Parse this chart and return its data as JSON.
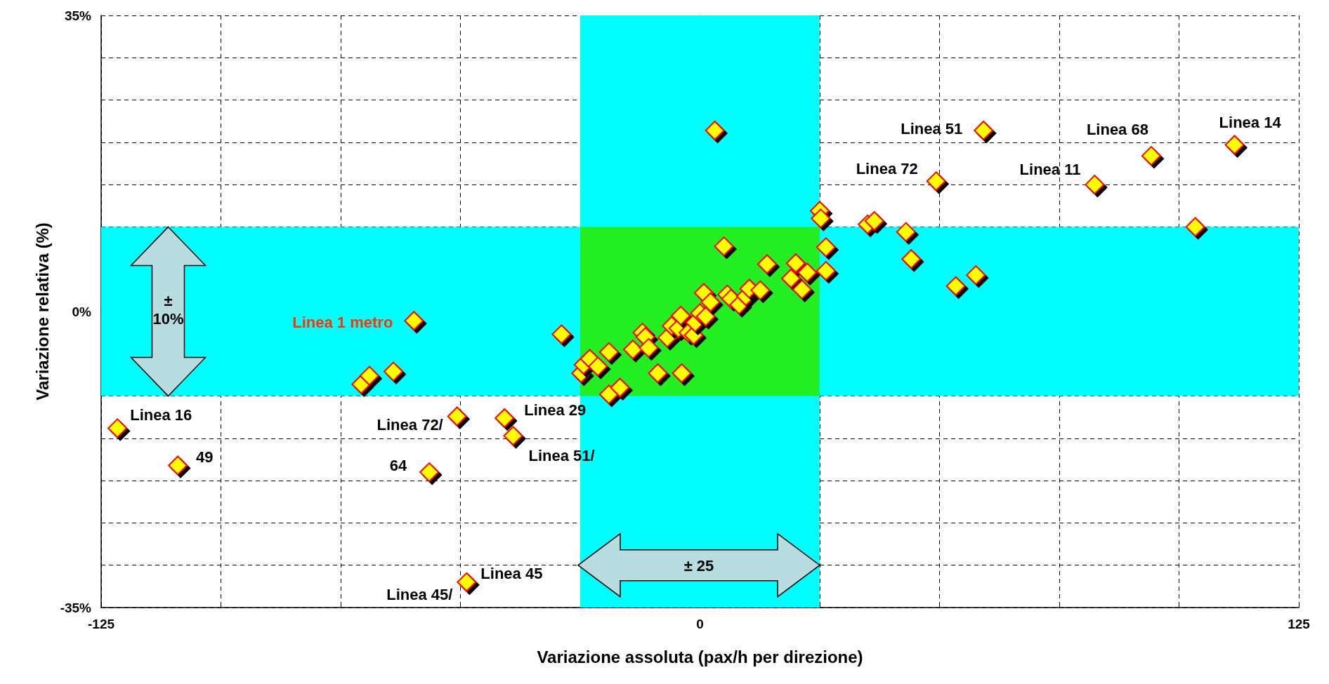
{
  "chart_data": {
    "type": "scatter",
    "xlabel": "Variazione assoluta (pax/h per direzione)",
    "ylabel": "Variazione relativa (%)",
    "xlim": [
      -125,
      125
    ],
    "xticks": [
      {
        "value": -125,
        "label": "-125"
      },
      {
        "value": -100,
        "label": null
      },
      {
        "value": -75,
        "label": null
      },
      {
        "value": -50,
        "label": null
      },
      {
        "value": -25,
        "label": null
      },
      {
        "value": 0,
        "label": "0"
      },
      {
        "value": 25,
        "label": null
      },
      {
        "value": 50,
        "label": null
      },
      {
        "value": 75,
        "label": null
      },
      {
        "value": 100,
        "label": null
      },
      {
        "value": 125,
        "label": "125"
      }
    ],
    "ylim": [
      -35,
      35
    ],
    "yticks": [
      {
        "value": -35,
        "label": "-35%"
      },
      {
        "value": -30,
        "label": null
      },
      {
        "value": -25,
        "label": null
      },
      {
        "value": -20,
        "label": null
      },
      {
        "value": -15,
        "label": null
      },
      {
        "value": -10,
        "label": null
      },
      {
        "value": -5,
        "label": null
      },
      {
        "value": 0,
        "label": "0%"
      },
      {
        "value": 5,
        "label": null
      },
      {
        "value": 10,
        "label": null
      },
      {
        "value": 15,
        "label": null
      },
      {
        "value": 20,
        "label": null
      },
      {
        "value": 25,
        "label": null
      },
      {
        "value": 30,
        "label": null
      },
      {
        "value": 35,
        "label": "35%"
      }
    ],
    "grid": true,
    "marker": "diamond",
    "series": [
      {
        "color": "#ffff00",
        "x": [
          -121.6,
          -109,
          -70.7,
          -69,
          -64,
          -59.7,
          -56.5,
          -50.7,
          -48.7,
          -40.8,
          -39,
          -28.9,
          -24.8,
          -24.3,
          -23,
          -21.3,
          -19,
          -19,
          -16.7,
          -14,
          -12,
          -11.4,
          -10.7,
          -8.8,
          -6.8,
          -5.9,
          -4.5,
          -4,
          -3.8,
          -2.4,
          -1.3,
          -1,
          0,
          0.8,
          1.2,
          2.2,
          3.1,
          5,
          5.7,
          6.5,
          8.2,
          9.6,
          10.3,
          12.6,
          14,
          19,
          20,
          21.3,
          22.4,
          25,
          25.2,
          26.3,
          26.3,
          35,
          36.4,
          43,
          44.1,
          49.3,
          53.4,
          57.6,
          59.2,
          82.4,
          94.2,
          103.4,
          111.6
        ],
        "values": [
          -13.8,
          -18.2,
          -8.6,
          -7.6,
          -7.1,
          -1.1,
          -19,
          -12.4,
          -32,
          -12.6,
          -14.7,
          -2.7,
          -7.3,
          -6.3,
          -5.6,
          -6.5,
          -9.8,
          -4.8,
          -9,
          -4.5,
          -2.5,
          -3,
          -4.3,
          -7.3,
          -3.1,
          -1.7,
          -2,
          -0.5,
          -7.3,
          -2.5,
          -2.8,
          -1.3,
          -0.2,
          2.2,
          -0.6,
          1.1,
          21.4,
          7.7,
          2,
          1.5,
          0.8,
          1.8,
          2.7,
          2.5,
          5.6,
          3.9,
          5.7,
          2.6,
          4.6,
          11.9,
          11,
          7.6,
          4.8,
          10.3,
          10.7,
          9.4,
          6.2,
          15.4,
          3,
          4.3,
          21.4,
          15,
          18.4,
          10,
          19.7
        ]
      }
    ],
    "bands": [
      {
        "axis": "x",
        "from": -25,
        "to": 25,
        "color": "#00ffff"
      },
      {
        "axis": "y",
        "from": -10,
        "to": 10,
        "color": "#00ffff"
      }
    ],
    "annotations": [
      {
        "text": "Linea 16",
        "x": -121.6,
        "y": -13.8
      },
      {
        "text": "49",
        "x": -109,
        "y": -18.2
      },
      {
        "text": "Linea 1 metro",
        "x": -59.7,
        "y": -1.1
      },
      {
        "text": "64",
        "x": -56.5,
        "y": -19
      },
      {
        "text": "Linea 72/",
        "x": -50.7,
        "y": -12.4
      },
      {
        "text": "Linea 45",
        "x": -48.7,
        "y": -32
      },
      {
        "text": "Linea 45/",
        "x": -48.7,
        "y": -32
      },
      {
        "text": "Linea 29",
        "x": -40.8,
        "y": -12.6
      },
      {
        "text": "Linea 51/",
        "x": -39,
        "y": -14.7
      },
      {
        "text": "Linea 72",
        "x": 49.3,
        "y": 15.4
      },
      {
        "text": "Linea 51",
        "x": 59.2,
        "y": 21.4
      },
      {
        "text": "Linea 11",
        "x": 82.4,
        "y": 15
      },
      {
        "text": "Linea 68",
        "x": 94.2,
        "y": 18.4
      },
      {
        "text": "Linea 14",
        "x": 111.6,
        "y": 19.7
      },
      "± 10%",
      "± 25"
    ]
  }
}
